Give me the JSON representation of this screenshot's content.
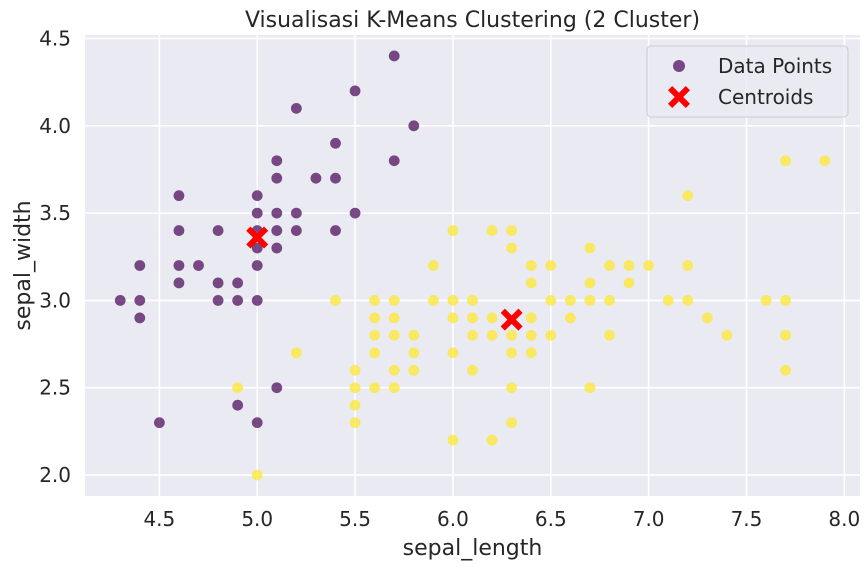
{
  "chart_data": {
    "type": "scatter",
    "title": "Visualisasi K-Means Clustering (2 Cluster)",
    "xlabel": "sepal_length",
    "ylabel": "sepal_width",
    "xlim": [
      4.12,
      8.08
    ],
    "ylim": [
      1.88,
      4.52
    ],
    "xticks": [
      4.5,
      5.0,
      5.5,
      6.0,
      6.5,
      7.0,
      7.5,
      8.0
    ],
    "xtick_labels": [
      "4.5",
      "5.0",
      "5.5",
      "6.0",
      "6.5",
      "7.0",
      "7.5",
      "8.0"
    ],
    "yticks": [
      2.0,
      2.5,
      3.0,
      3.5,
      4.0,
      4.5
    ],
    "ytick_labels": [
      "2.0",
      "2.5",
      "3.0",
      "3.5",
      "4.0",
      "4.5"
    ],
    "grid": true,
    "legend": {
      "position": "top-right",
      "entries": [
        {
          "label": "Data Points",
          "marker": "circle",
          "color": "#440154"
        },
        {
          "label": "Centroids",
          "marker": "x",
          "color": "#ff0000"
        }
      ]
    },
    "colors": {
      "background": "#eaeaf2",
      "grid": "#ffffff",
      "cluster_0": "#440154",
      "cluster_1": "#fde725",
      "centroid": "#ff0000"
    },
    "series": [
      {
        "cluster": 0,
        "color": "#440154",
        "points": [
          [
            5.7,
            4.4
          ],
          [
            5.5,
            4.2
          ],
          [
            5.2,
            4.1
          ],
          [
            5.8,
            4.0
          ],
          [
            5.4,
            3.9
          ],
          [
            5.1,
            3.8
          ],
          [
            5.7,
            3.8
          ],
          [
            5.1,
            3.7
          ],
          [
            5.3,
            3.7
          ],
          [
            5.4,
            3.7
          ],
          [
            4.6,
            3.6
          ],
          [
            5.0,
            3.6
          ],
          [
            5.0,
            3.5
          ],
          [
            5.1,
            3.5
          ],
          [
            5.2,
            3.5
          ],
          [
            5.5,
            3.5
          ],
          [
            4.6,
            3.4
          ],
          [
            4.8,
            3.4
          ],
          [
            5.0,
            3.4
          ],
          [
            5.1,
            3.4
          ],
          [
            5.2,
            3.4
          ],
          [
            5.4,
            3.4
          ],
          [
            4.4,
            3.2
          ],
          [
            4.6,
            3.2
          ],
          [
            4.7,
            3.2
          ],
          [
            5.0,
            3.2
          ],
          [
            4.6,
            3.1
          ],
          [
            4.8,
            3.1
          ],
          [
            4.9,
            3.1
          ],
          [
            4.3,
            3.0
          ],
          [
            4.4,
            3.0
          ],
          [
            4.8,
            3.0
          ],
          [
            4.9,
            3.0
          ],
          [
            5.0,
            3.0
          ],
          [
            4.4,
            2.9
          ],
          [
            5.1,
            3.3
          ],
          [
            5.0,
            3.3
          ],
          [
            5.1,
            2.5
          ],
          [
            4.9,
            2.4
          ],
          [
            4.5,
            2.3
          ],
          [
            5.0,
            2.3
          ]
        ]
      },
      {
        "cluster": 1,
        "color": "#fde725",
        "points": [
          [
            7.7,
            3.8
          ],
          [
            7.9,
            3.8
          ],
          [
            7.2,
            3.6
          ],
          [
            6.0,
            3.4
          ],
          [
            6.2,
            3.4
          ],
          [
            6.3,
            3.4
          ],
          [
            6.3,
            3.3
          ],
          [
            6.7,
            3.3
          ],
          [
            5.9,
            3.2
          ],
          [
            6.4,
            3.2
          ],
          [
            6.5,
            3.2
          ],
          [
            6.8,
            3.2
          ],
          [
            6.9,
            3.2
          ],
          [
            7.0,
            3.2
          ],
          [
            7.2,
            3.2
          ],
          [
            6.4,
            3.1
          ],
          [
            6.7,
            3.1
          ],
          [
            6.9,
            3.1
          ],
          [
            5.4,
            3.0
          ],
          [
            5.6,
            3.0
          ],
          [
            5.7,
            3.0
          ],
          [
            5.9,
            3.0
          ],
          [
            6.0,
            3.0
          ],
          [
            6.1,
            3.0
          ],
          [
            6.5,
            3.0
          ],
          [
            6.6,
            3.0
          ],
          [
            6.7,
            3.0
          ],
          [
            6.8,
            3.0
          ],
          [
            7.1,
            3.0
          ],
          [
            7.2,
            3.0
          ],
          [
            7.6,
            3.0
          ],
          [
            7.7,
            3.0
          ],
          [
            5.6,
            2.9
          ],
          [
            5.7,
            2.9
          ],
          [
            6.0,
            2.9
          ],
          [
            6.1,
            2.9
          ],
          [
            6.2,
            2.9
          ],
          [
            6.4,
            2.9
          ],
          [
            6.6,
            2.9
          ],
          [
            7.3,
            2.9
          ],
          [
            5.6,
            2.8
          ],
          [
            5.7,
            2.8
          ],
          [
            5.8,
            2.8
          ],
          [
            6.1,
            2.8
          ],
          [
            6.2,
            2.8
          ],
          [
            6.3,
            2.8
          ],
          [
            6.4,
            2.8
          ],
          [
            6.5,
            2.8
          ],
          [
            6.8,
            2.8
          ],
          [
            7.4,
            2.8
          ],
          [
            7.7,
            2.8
          ],
          [
            5.2,
            2.7
          ],
          [
            5.6,
            2.7
          ],
          [
            5.8,
            2.7
          ],
          [
            6.0,
            2.7
          ],
          [
            6.3,
            2.7
          ],
          [
            6.4,
            2.7
          ],
          [
            5.5,
            2.6
          ],
          [
            5.7,
            2.6
          ],
          [
            5.8,
            2.6
          ],
          [
            6.1,
            2.6
          ],
          [
            7.7,
            2.6
          ],
          [
            4.9,
            2.5
          ],
          [
            5.5,
            2.5
          ],
          [
            5.6,
            2.5
          ],
          [
            5.7,
            2.5
          ],
          [
            6.3,
            2.5
          ],
          [
            6.7,
            2.5
          ],
          [
            5.5,
            2.4
          ],
          [
            5.5,
            2.3
          ],
          [
            6.3,
            2.3
          ],
          [
            6.0,
            2.2
          ],
          [
            6.2,
            2.2
          ],
          [
            5.0,
            2.0
          ]
        ]
      }
    ],
    "centroids": [
      {
        "x": 5.0,
        "y": 3.36
      },
      {
        "x": 6.3,
        "y": 2.89
      }
    ]
  }
}
